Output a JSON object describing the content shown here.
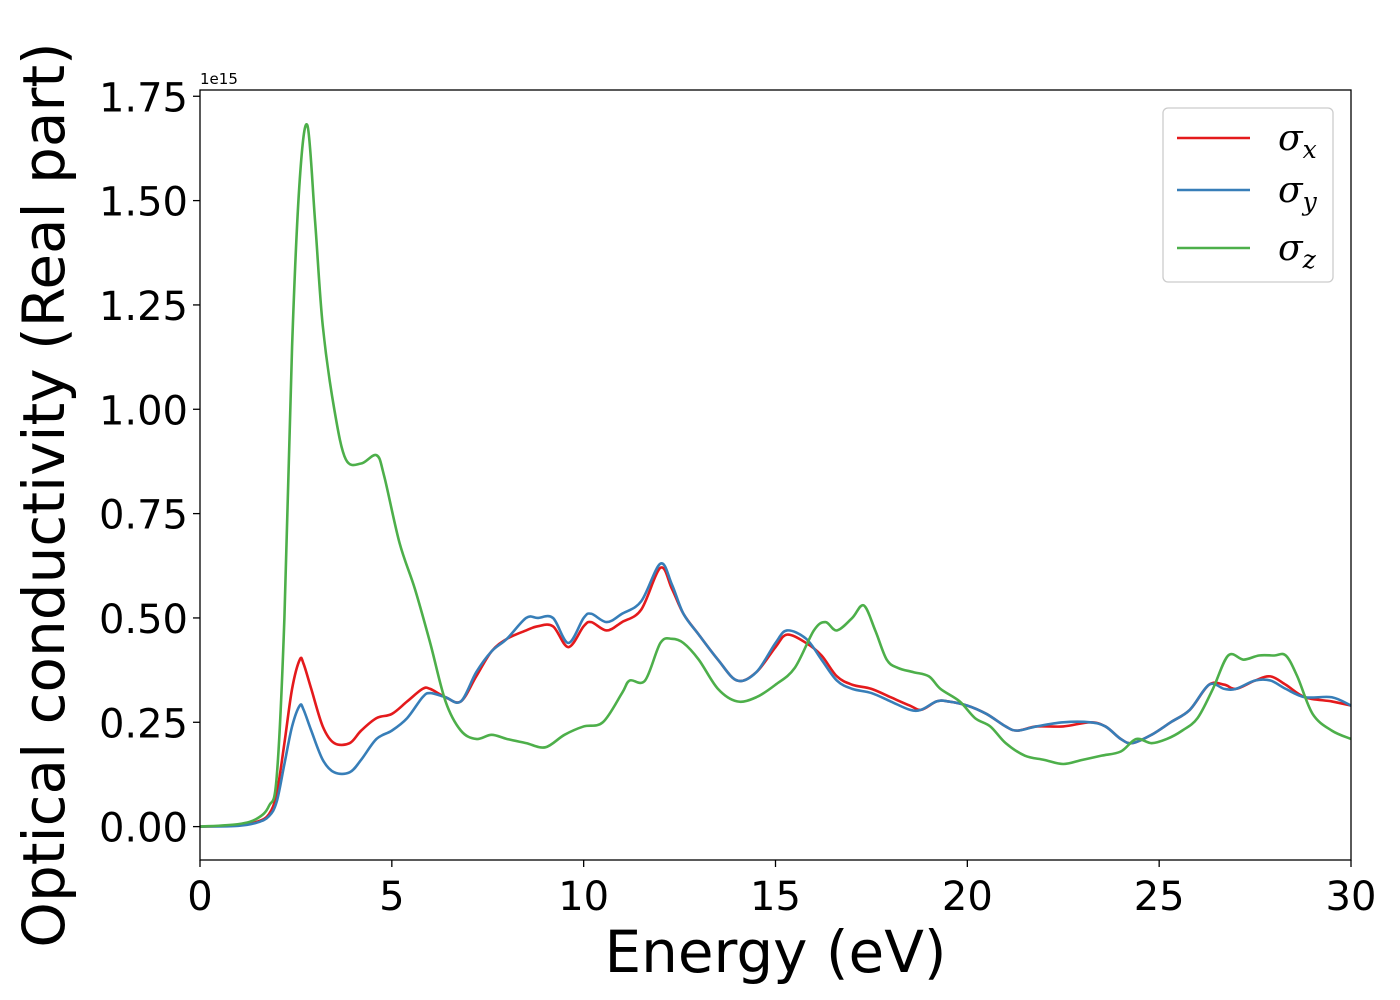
{
  "chart_data": {
    "type": "line",
    "title": "",
    "xlabel": "Energy (eV)",
    "ylabel": "Optical conductivity (Real part)",
    "y_offset_label": "1e15",
    "xlim": [
      0,
      30
    ],
    "ylim": [
      -0.08,
      1.765
    ],
    "xticks": [
      0,
      5,
      10,
      15,
      20,
      25,
      30
    ],
    "xtick_labels": [
      "0",
      "5",
      "10",
      "15",
      "20",
      "25",
      "30"
    ],
    "yticks": [
      0.0,
      0.25,
      0.5,
      0.75,
      1.0,
      1.25,
      1.5,
      1.75
    ],
    "ytick_labels": [
      "0.00",
      "0.25",
      "0.50",
      "0.75",
      "1.00",
      "1.25",
      "1.50",
      "1.75"
    ],
    "grid": false,
    "legend_position": "top-right",
    "series": [
      {
        "name": "σx",
        "symbol": "σ",
        "subscript": "x",
        "color": "#e41a1c",
        "x": [
          0,
          1,
          1.5,
          1.8,
          2.0,
          2.2,
          2.4,
          2.6,
          2.7,
          2.9,
          3.2,
          3.5,
          3.9,
          4.2,
          4.6,
          5.0,
          5.4,
          5.8,
          6.0,
          6.4,
          6.8,
          7.2,
          7.6,
          8.0,
          8.5,
          8.8,
          9.2,
          9.6,
          10.0,
          10.2,
          10.6,
          11.0,
          11.5,
          12.0,
          12.3,
          12.6,
          13.0,
          13.5,
          14.0,
          14.5,
          15.0,
          15.3,
          15.8,
          16.2,
          16.6,
          17.0,
          17.5,
          18.0,
          18.5,
          18.8,
          19.2,
          19.5,
          20.0,
          20.5,
          21.0,
          21.3,
          21.8,
          22.5,
          23.2,
          23.6,
          24.0,
          24.3,
          24.8,
          25.3,
          25.8,
          26.3,
          26.7,
          27.0,
          27.5,
          27.9,
          28.3,
          28.8,
          29.5,
          30.0
        ],
        "y": [
          0.0,
          0.003,
          0.012,
          0.03,
          0.08,
          0.2,
          0.33,
          0.4,
          0.39,
          0.33,
          0.24,
          0.2,
          0.2,
          0.23,
          0.26,
          0.27,
          0.3,
          0.33,
          0.33,
          0.31,
          0.3,
          0.36,
          0.42,
          0.45,
          0.47,
          0.48,
          0.48,
          0.43,
          0.48,
          0.49,
          0.47,
          0.49,
          0.52,
          0.62,
          0.57,
          0.51,
          0.46,
          0.4,
          0.35,
          0.37,
          0.43,
          0.46,
          0.44,
          0.41,
          0.36,
          0.34,
          0.33,
          0.31,
          0.29,
          0.28,
          0.3,
          0.3,
          0.29,
          0.27,
          0.24,
          0.23,
          0.24,
          0.24,
          0.25,
          0.24,
          0.21,
          0.2,
          0.22,
          0.25,
          0.28,
          0.34,
          0.34,
          0.33,
          0.35,
          0.36,
          0.34,
          0.31,
          0.3,
          0.29
        ]
      },
      {
        "name": "σy",
        "symbol": "σ",
        "subscript": "y",
        "color": "#377eb8",
        "x": [
          0,
          1,
          1.5,
          1.8,
          2.0,
          2.2,
          2.4,
          2.6,
          2.7,
          2.9,
          3.2,
          3.5,
          3.9,
          4.2,
          4.6,
          5.0,
          5.4,
          5.8,
          6.0,
          6.4,
          6.8,
          7.2,
          7.6,
          8.0,
          8.5,
          8.8,
          9.2,
          9.6,
          10.0,
          10.2,
          10.6,
          11.0,
          11.5,
          12.0,
          12.3,
          12.6,
          13.0,
          13.5,
          14.0,
          14.5,
          15.0,
          15.3,
          15.8,
          16.2,
          16.6,
          17.0,
          17.5,
          18.0,
          18.5,
          18.8,
          19.2,
          19.5,
          20.0,
          20.5,
          21.0,
          21.3,
          21.8,
          22.5,
          23.2,
          23.6,
          24.0,
          24.3,
          24.8,
          25.3,
          25.8,
          26.3,
          26.7,
          27.0,
          27.5,
          27.9,
          28.3,
          28.8,
          29.5,
          30.0
        ],
        "y": [
          0.0,
          0.002,
          0.01,
          0.025,
          0.06,
          0.15,
          0.24,
          0.29,
          0.28,
          0.23,
          0.16,
          0.13,
          0.13,
          0.16,
          0.21,
          0.23,
          0.26,
          0.31,
          0.32,
          0.31,
          0.3,
          0.37,
          0.42,
          0.45,
          0.5,
          0.5,
          0.5,
          0.44,
          0.5,
          0.51,
          0.49,
          0.51,
          0.54,
          0.63,
          0.58,
          0.51,
          0.46,
          0.4,
          0.35,
          0.37,
          0.44,
          0.47,
          0.45,
          0.4,
          0.35,
          0.33,
          0.32,
          0.3,
          0.28,
          0.28,
          0.3,
          0.3,
          0.29,
          0.27,
          0.24,
          0.23,
          0.24,
          0.25,
          0.25,
          0.24,
          0.21,
          0.2,
          0.22,
          0.25,
          0.28,
          0.34,
          0.33,
          0.33,
          0.35,
          0.35,
          0.33,
          0.31,
          0.31,
          0.29
        ]
      },
      {
        "name": "σz",
        "symbol": "σ",
        "subscript": "z",
        "color": "#4daf4a",
        "x": [
          0,
          1,
          1.5,
          1.8,
          2.0,
          2.2,
          2.4,
          2.6,
          2.8,
          3.0,
          3.2,
          3.5,
          3.8,
          4.2,
          4.6,
          4.8,
          5.2,
          5.6,
          6.0,
          6.4,
          6.8,
          7.2,
          7.6,
          8.0,
          8.5,
          9.0,
          9.5,
          10.0,
          10.5,
          11.0,
          11.2,
          11.6,
          12.0,
          12.3,
          12.6,
          13.0,
          13.5,
          14.0,
          14.5,
          15.0,
          15.5,
          16.0,
          16.3,
          16.6,
          17.0,
          17.3,
          17.6,
          17.9,
          18.2,
          18.6,
          19.0,
          19.3,
          19.8,
          20.2,
          20.6,
          21.0,
          21.5,
          22.0,
          22.5,
          23.0,
          23.5,
          24.0,
          24.4,
          24.8,
          25.2,
          25.6,
          26.0,
          26.4,
          26.8,
          27.2,
          27.6,
          28.0,
          28.3,
          28.6,
          29.0,
          29.5,
          30.0
        ],
        "y": [
          0.0,
          0.006,
          0.02,
          0.05,
          0.12,
          0.5,
          1.15,
          1.55,
          1.68,
          1.45,
          1.2,
          1.0,
          0.88,
          0.87,
          0.89,
          0.84,
          0.68,
          0.57,
          0.44,
          0.3,
          0.23,
          0.21,
          0.22,
          0.21,
          0.2,
          0.19,
          0.22,
          0.24,
          0.25,
          0.32,
          0.35,
          0.35,
          0.44,
          0.45,
          0.44,
          0.4,
          0.33,
          0.3,
          0.31,
          0.34,
          0.38,
          0.47,
          0.49,
          0.47,
          0.5,
          0.53,
          0.47,
          0.4,
          0.38,
          0.37,
          0.36,
          0.33,
          0.3,
          0.26,
          0.24,
          0.2,
          0.17,
          0.16,
          0.15,
          0.16,
          0.17,
          0.18,
          0.21,
          0.2,
          0.21,
          0.23,
          0.26,
          0.33,
          0.41,
          0.4,
          0.41,
          0.41,
          0.41,
          0.36,
          0.27,
          0.23,
          0.21
        ]
      }
    ]
  }
}
